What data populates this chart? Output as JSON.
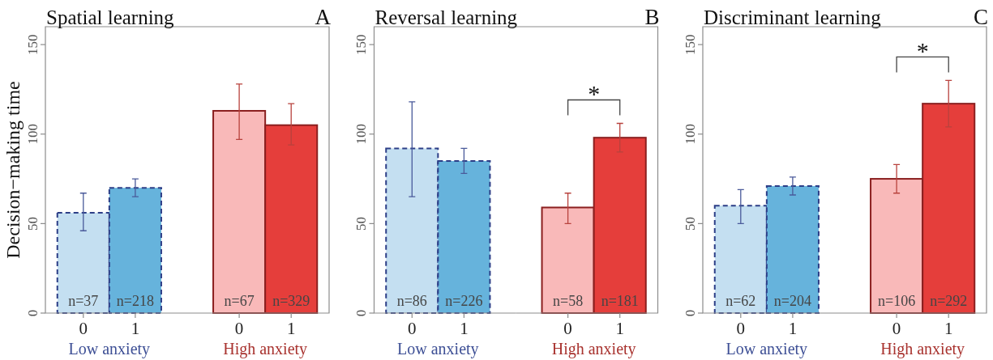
{
  "chart_data": [
    {
      "type": "bar",
      "title": "Spatial learning",
      "ylabel": "Decision−making time",
      "xlabel": "Low anxiety",
      "categories": [
        "0",
        "1"
      ],
      "values": [
        56,
        70
      ],
      "colors": [
        "#c4dff1",
        "#66b3dc"
      ],
      "errors": [
        [
          46,
          67
        ],
        [
          65,
          75
        ]
      ],
      "ylim": [
        0,
        160
      ],
      "yticks": [
        0,
        50,
        100,
        150
      ],
      "annotations": [
        "n=37",
        "n=218"
      ]
    },
    {
      "type": "bar",
      "title": "A",
      "xlabel": "High anxiety",
      "categories": [
        "0",
        "1"
      ],
      "values": [
        113,
        105
      ],
      "colors": [
        "#f9b9b9",
        "#e53e3b"
      ],
      "errors": [
        [
          97,
          128
        ],
        [
          94,
          117
        ]
      ],
      "ylim": [
        0,
        160
      ],
      "tick_labels": "x",
      "annotations": [
        "n=67",
        "n=329"
      ]
    },
    {
      "type": "bar",
      "title": "Reversal learning",
      "xlabel": "Low anxiety",
      "categories": [
        "0",
        "1"
      ],
      "values": [
        92,
        85
      ],
      "colors": [
        "#c4dff1",
        "#66b3dc"
      ],
      "errors": [
        [
          65,
          118
        ],
        [
          78,
          92
        ]
      ],
      "ylim": [
        0,
        160
      ],
      "yticks": [
        0,
        50,
        100,
        150
      ],
      "annotations": [
        "n=86",
        "n=226"
      ]
    },
    {
      "type": "bar",
      "title": "B",
      "xlabel": "High anxiety",
      "categories": [
        "0",
        "1"
      ],
      "values": [
        59,
        98
      ],
      "colors": [
        "#f9b9b9",
        "#e53e3b"
      ],
      "errors": [
        [
          50,
          67
        ],
        [
          90,
          106
        ]
      ],
      "ylim": [
        0,
        160
      ],
      "tick_labels": "x",
      "annotations": [
        "n=58",
        "n=181",
        "*"
      ]
    },
    {
      "type": "bar",
      "title": "Discriminant learning",
      "xlabel": "Low anxiety",
      "categories": [
        "0",
        "1"
      ],
      "values": [
        60,
        71
      ],
      "colors": [
        "#c4dff1",
        "#66b3dc"
      ],
      "errors": [
        [
          50,
          69
        ],
        [
          66,
          76
        ]
      ],
      "ylim": [
        0,
        160
      ],
      "yticks": [
        0,
        50,
        100,
        150
      ],
      "annotations": [
        "n=62",
        "n=204"
      ]
    },
    {
      "type": "bar",
      "title": "C",
      "xlabel": "High anxiety",
      "categories": [
        "0",
        "1"
      ],
      "values": [
        75,
        117
      ],
      "colors": [
        "#f9b9b9",
        "#e53e3b"
      ],
      "errors": [
        [
          67,
          83
        ],
        [
          104,
          130
        ]
      ],
      "ylim": [
        0,
        160
      ],
      "tick_labels": "x",
      "annotations": [
        "n=106",
        "n=292",
        "*"
      ]
    }
  ]
}
